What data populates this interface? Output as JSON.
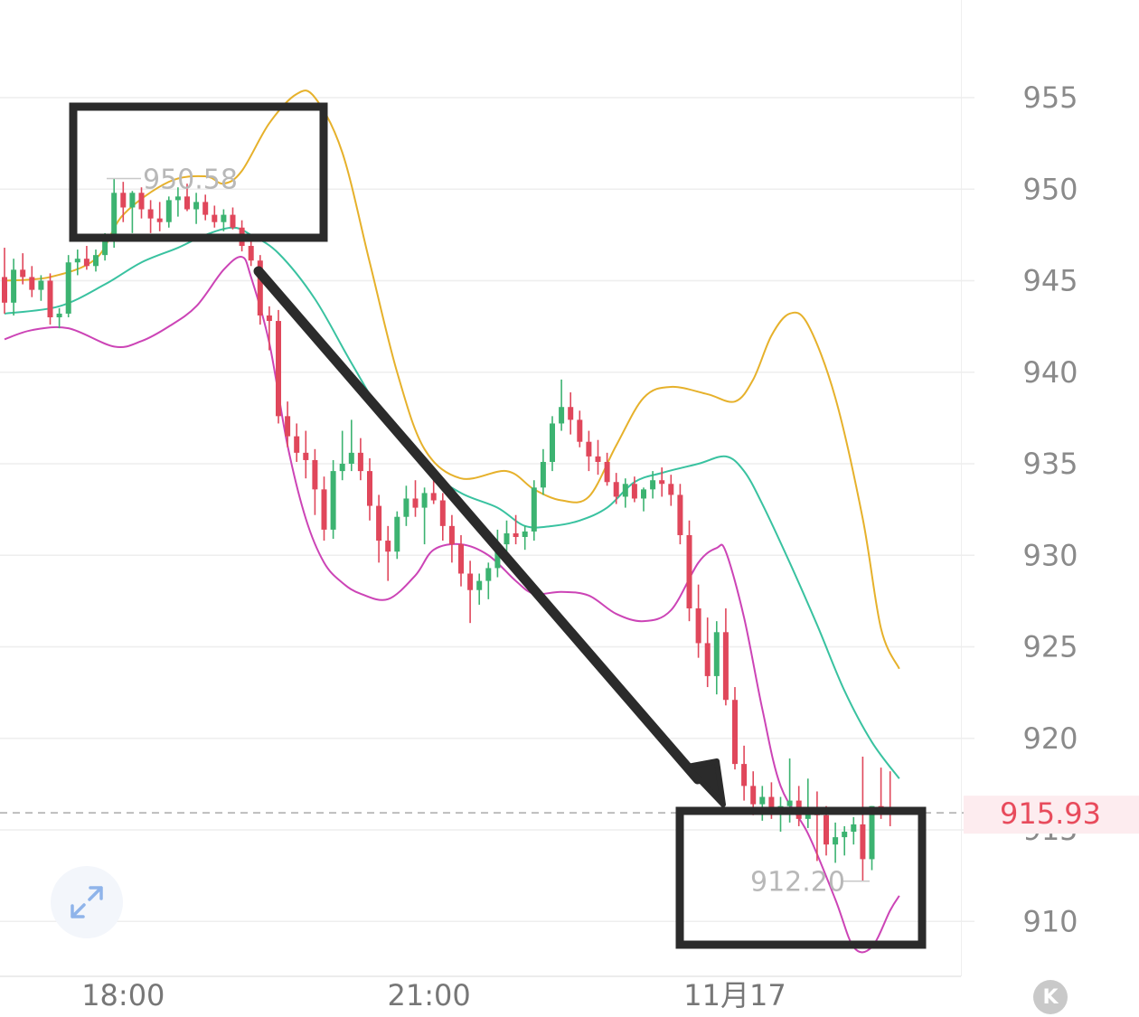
{
  "chart_data": {
    "type": "candlestick",
    "y_axis": {
      "ticks": [
        955,
        950,
        945,
        940,
        935,
        930,
        925,
        920,
        915,
        910
      ],
      "ylim": [
        907,
        960
      ],
      "position": "right",
      "grid": true
    },
    "x_axis": {
      "tick_labels": [
        "18:00",
        "21:00",
        "11月17"
      ]
    },
    "current_price": {
      "label": "915.93",
      "value": 915.93
    },
    "annotations": [
      {
        "label": "950.58",
        "value": 950.58,
        "kind": "high"
      },
      {
        "label": "912.20",
        "value": 912.2,
        "kind": "low"
      }
    ],
    "candles": [
      [
        945.2,
        946.8,
        943.2,
        943.8
      ],
      [
        943.8,
        946.2,
        943.1,
        945.6
      ],
      [
        945.6,
        946.5,
        944.8,
        945.2
      ],
      [
        945.2,
        945.8,
        944.1,
        944.5
      ],
      [
        944.5,
        945.3,
        943.9,
        945.0
      ],
      [
        945.0,
        945.4,
        942.6,
        943.0
      ],
      [
        943.0,
        943.5,
        942.4,
        943.2
      ],
      [
        943.2,
        946.4,
        943.0,
        946.0
      ],
      [
        946.0,
        946.7,
        945.3,
        946.2
      ],
      [
        946.2,
        946.9,
        945.6,
        945.8
      ],
      [
        945.8,
        946.7,
        945.5,
        946.4
      ],
      [
        946.4,
        947.6,
        946.1,
        947.2
      ],
      [
        947.2,
        950.6,
        946.8,
        949.8
      ],
      [
        949.8,
        950.4,
        948.2,
        949.0
      ],
      [
        949.0,
        949.9,
        947.6,
        949.8
      ],
      [
        949.8,
        950.1,
        948.4,
        948.9
      ],
      [
        948.9,
        949.4,
        947.6,
        948.4
      ],
      [
        948.4,
        949.3,
        947.7,
        948.2
      ],
      [
        948.2,
        949.6,
        947.9,
        949.4
      ],
      [
        949.4,
        950.1,
        948.5,
        949.6
      ],
      [
        949.6,
        950.3,
        948.8,
        948.9
      ],
      [
        948.9,
        949.8,
        948.1,
        949.3
      ],
      [
        949.3,
        949.7,
        948.3,
        948.6
      ],
      [
        948.6,
        949.1,
        947.9,
        948.2
      ],
      [
        948.2,
        948.9,
        947.7,
        948.6
      ],
      [
        948.6,
        949.0,
        947.8,
        947.9
      ],
      [
        947.9,
        948.3,
        946.6,
        946.9
      ],
      [
        946.9,
        947.4,
        945.8,
        946.1
      ],
      [
        946.1,
        946.4,
        942.6,
        943.1
      ],
      [
        943.1,
        943.6,
        941.2,
        942.8
      ],
      [
        942.8,
        943.4,
        937.2,
        937.6
      ],
      [
        937.6,
        938.4,
        935.9,
        936.5
      ],
      [
        936.5,
        937.2,
        935.1,
        935.6
      ],
      [
        935.6,
        936.8,
        934.2,
        935.2
      ],
      [
        935.2,
        935.8,
        932.2,
        933.6
      ],
      [
        933.6,
        934.3,
        930.8,
        931.4
      ],
      [
        931.4,
        935.2,
        930.9,
        934.6
      ],
      [
        934.6,
        936.8,
        934.1,
        935.0
      ],
      [
        935.0,
        937.4,
        934.6,
        935.6
      ],
      [
        935.6,
        936.4,
        934.1,
        934.6
      ],
      [
        934.6,
        935.3,
        931.9,
        932.7
      ],
      [
        932.7,
        933.3,
        929.6,
        930.8
      ],
      [
        930.8,
        931.6,
        928.6,
        930.2
      ],
      [
        930.2,
        932.4,
        929.8,
        932.1
      ],
      [
        932.1,
        933.8,
        931.6,
        933.1
      ],
      [
        933.1,
        934.1,
        932.1,
        932.6
      ],
      [
        932.6,
        933.7,
        930.6,
        933.4
      ],
      [
        933.4,
        934.6,
        932.8,
        933.0
      ],
      [
        933.0,
        933.4,
        930.8,
        931.6
      ],
      [
        931.6,
        932.2,
        929.6,
        930.6
      ],
      [
        930.6,
        931.1,
        928.3,
        929.0
      ],
      [
        929.0,
        929.7,
        926.3,
        928.1
      ],
      [
        928.1,
        929.0,
        927.3,
        928.6
      ],
      [
        928.6,
        929.6,
        927.6,
        929.3
      ],
      [
        929.3,
        931.4,
        928.8,
        930.6
      ],
      [
        930.6,
        931.9,
        929.8,
        931.2
      ],
      [
        931.2,
        932.2,
        930.6,
        931.0
      ],
      [
        931.0,
        931.6,
        930.3,
        931.3
      ],
      [
        931.3,
        934.1,
        930.8,
        933.7
      ],
      [
        933.7,
        935.8,
        933.3,
        935.1
      ],
      [
        935.1,
        937.6,
        934.6,
        937.2
      ],
      [
        937.2,
        939.6,
        936.8,
        938.1
      ],
      [
        938.1,
        938.9,
        936.6,
        937.4
      ],
      [
        937.4,
        937.9,
        935.9,
        936.2
      ],
      [
        936.2,
        936.8,
        934.6,
        935.4
      ],
      [
        935.4,
        936.3,
        934.4,
        935.1
      ],
      [
        935.1,
        935.6,
        933.8,
        934.0
      ],
      [
        934.0,
        934.5,
        932.8,
        933.2
      ],
      [
        933.2,
        934.2,
        932.6,
        933.9
      ],
      [
        933.9,
        934.3,
        932.9,
        933.1
      ],
      [
        933.1,
        933.7,
        932.4,
        933.6
      ],
      [
        933.6,
        934.6,
        933.1,
        934.1
      ],
      [
        934.1,
        934.8,
        933.2,
        933.9
      ],
      [
        933.9,
        934.4,
        932.7,
        933.3
      ],
      [
        933.3,
        933.9,
        930.6,
        931.1
      ],
      [
        931.1,
        931.9,
        926.4,
        927.1
      ],
      [
        927.1,
        928.4,
        924.4,
        925.2
      ],
      [
        925.2,
        926.6,
        922.8,
        923.4
      ],
      [
        923.4,
        926.4,
        922.4,
        925.8
      ],
      [
        925.8,
        927.1,
        921.8,
        922.1
      ],
      [
        922.1,
        922.8,
        918.3,
        918.6
      ],
      [
        918.6,
        919.6,
        916.6,
        917.4
      ],
      [
        917.4,
        918.2,
        915.8,
        916.4
      ],
      [
        916.4,
        917.4,
        915.5,
        916.8
      ],
      [
        916.8,
        917.6,
        915.6,
        915.9
      ],
      [
        915.9,
        916.8,
        914.9,
        916.3
      ],
      [
        916.3,
        918.9,
        915.4,
        916.6
      ],
      [
        916.6,
        917.4,
        915.2,
        915.6
      ],
      [
        915.6,
        917.8,
        915.1,
        916.2
      ],
      [
        916.2,
        917.1,
        913.3,
        915.8
      ],
      [
        915.8,
        916.3,
        913.6,
        914.2
      ],
      [
        914.2,
        915.4,
        913.2,
        914.6
      ],
      [
        914.6,
        915.2,
        913.6,
        914.9
      ],
      [
        914.9,
        915.7,
        914.2,
        915.3
      ],
      [
        915.3,
        919.0,
        912.2,
        913.4
      ],
      [
        913.4,
        916.3,
        912.8,
        916.3
      ],
      [
        916.3,
        918.4,
        915.6,
        916.1
      ],
      [
        916.1,
        918.2,
        915.2,
        915.9
      ]
    ],
    "bands": [
      {
        "color": "#e6b12b",
        "points": [
          [
            0,
            945.0
          ],
          [
            5,
            945.2
          ],
          [
            10,
            946.2
          ],
          [
            13,
            948.6
          ],
          [
            18,
            950.4
          ],
          [
            22,
            950.7
          ],
          [
            24,
            950.3
          ],
          [
            26,
            951.0
          ],
          [
            29,
            953.6
          ],
          [
            32,
            955.2
          ],
          [
            34,
            955.0
          ],
          [
            37,
            952.0
          ],
          [
            40,
            946.0
          ],
          [
            43,
            940.0
          ],
          [
            46,
            935.8
          ],
          [
            50,
            934.2
          ],
          [
            55,
            934.6
          ],
          [
            58,
            933.6
          ],
          [
            61,
            933.0
          ],
          [
            64,
            933.2
          ],
          [
            67,
            936.0
          ],
          [
            70,
            938.6
          ],
          [
            73,
            939.2
          ],
          [
            77,
            938.8
          ],
          [
            80,
            938.4
          ],
          [
            82,
            939.6
          ],
          [
            84,
            942.0
          ],
          [
            86,
            943.2
          ],
          [
            88,
            942.6
          ],
          [
            91,
            938.6
          ],
          [
            94,
            932.0
          ],
          [
            96,
            926.0
          ],
          [
            98,
            923.8
          ]
        ]
      },
      {
        "color": "#39c2a0",
        "points": [
          [
            0,
            943.2
          ],
          [
            6,
            943.6
          ],
          [
            11,
            944.8
          ],
          [
            15,
            946.0
          ],
          [
            19,
            946.8
          ],
          [
            22,
            947.5
          ],
          [
            25,
            947.9
          ],
          [
            27,
            947.5
          ],
          [
            30,
            946.5
          ],
          [
            34,
            944.0
          ],
          [
            38,
            940.5
          ],
          [
            42,
            937.2
          ],
          [
            46,
            934.8
          ],
          [
            50,
            933.4
          ],
          [
            54,
            932.6
          ],
          [
            57,
            931.6
          ],
          [
            60,
            931.6
          ],
          [
            63,
            931.9
          ],
          [
            66,
            932.6
          ],
          [
            69,
            934.0
          ],
          [
            72,
            934.5
          ],
          [
            76,
            935.0
          ],
          [
            79,
            935.4
          ],
          [
            81,
            934.6
          ],
          [
            83,
            932.8
          ],
          [
            86,
            929.6
          ],
          [
            89,
            926.2
          ],
          [
            92,
            922.6
          ],
          [
            95,
            919.8
          ],
          [
            98,
            917.8
          ]
        ]
      },
      {
        "color": "#cc44b6",
        "points": [
          [
            0,
            941.8
          ],
          [
            3,
            942.3
          ],
          [
            7,
            942.4
          ],
          [
            12,
            941.4
          ],
          [
            15,
            941.7
          ],
          [
            18,
            942.5
          ],
          [
            21,
            943.6
          ],
          [
            24,
            945.6
          ],
          [
            26,
            946.3
          ],
          [
            27,
            945.2
          ],
          [
            29,
            941.6
          ],
          [
            31,
            936.0
          ],
          [
            33,
            932.0
          ],
          [
            35,
            929.6
          ],
          [
            37,
            928.5
          ],
          [
            39,
            927.9
          ],
          [
            42,
            927.6
          ],
          [
            45,
            928.9
          ],
          [
            47,
            930.3
          ],
          [
            50,
            930.6
          ],
          [
            53,
            930.0
          ],
          [
            56,
            928.6
          ],
          [
            58,
            927.9
          ],
          [
            61,
            928.0
          ],
          [
            64,
            927.8
          ],
          [
            67,
            926.8
          ],
          [
            70,
            926.4
          ],
          [
            73,
            927.0
          ],
          [
            76,
            929.6
          ],
          [
            78,
            930.4
          ],
          [
            79,
            930.2
          ],
          [
            81,
            926.6
          ],
          [
            83,
            921.6
          ],
          [
            85,
            917.4
          ],
          [
            88,
            914.8
          ],
          [
            91,
            911.2
          ],
          [
            93,
            908.6
          ],
          [
            95,
            908.6
          ],
          [
            97,
            910.6
          ],
          [
            98,
            911.4
          ]
        ]
      }
    ]
  }
}
